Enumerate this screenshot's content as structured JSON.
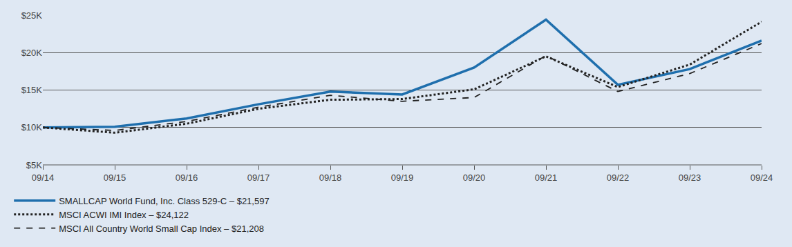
{
  "chart_data": {
    "type": "line",
    "categories": [
      "09/14",
      "09/15",
      "09/16",
      "09/17",
      "09/18",
      "09/19",
      "09/20",
      "09/21",
      "09/22",
      "09/23",
      "09/24"
    ],
    "series": [
      {
        "name": "SMALLCAP World Fund, Inc. Class 529-C – $21,597",
        "color": "#1f6fad",
        "line_style": "solid",
        "values": [
          10000,
          10100,
          11200,
          13100,
          14800,
          14400,
          18000,
          24400,
          15700,
          17800,
          21597
        ]
      },
      {
        "name": "MSCI ACWI IMI Index – $24,122",
        "color": "#222222",
        "line_style": "dotted",
        "values": [
          10000,
          9300,
          10500,
          12500,
          13700,
          13800,
          15100,
          19500,
          15400,
          18400,
          24122
        ]
      },
      {
        "name": "MSCI All Country World Small Cap Index – $21,208",
        "color": "#222222",
        "line_style": "dashed",
        "values": [
          10000,
          9600,
          10800,
          12700,
          14300,
          13500,
          14000,
          19600,
          14800,
          17200,
          21208
        ]
      }
    ],
    "ylim": [
      5000,
      25000
    ],
    "yticks": [
      {
        "value": 5000,
        "label": "$5K"
      },
      {
        "value": 10000,
        "label": "$10K"
      },
      {
        "value": 15000,
        "label": "$15K"
      },
      {
        "value": 20000,
        "label": "$20K"
      },
      {
        "value": 25000,
        "label": "$25K"
      }
    ],
    "grid": true,
    "legend": "bottom-left"
  }
}
